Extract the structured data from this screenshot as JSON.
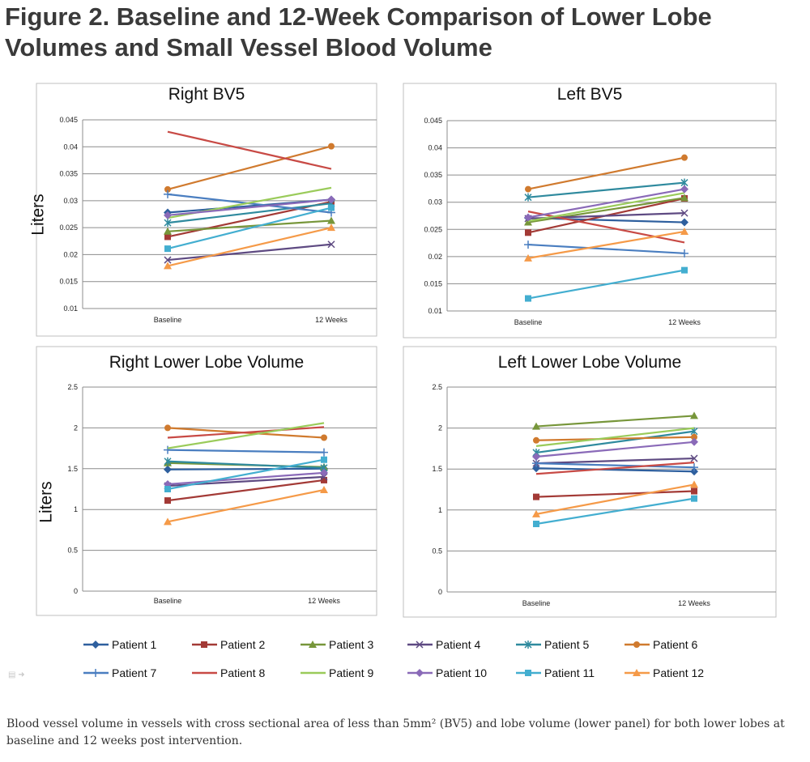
{
  "figure": {
    "title": "Figure 2. Baseline and 12-Week Comparison of Lower Lobe Volumes and Small Vessel Blood Volume",
    "caption": "Blood vessel volume in vessels with cross sectional area of less than 5mm² (BV5) and lobe volume (lower panel) for both lower lobes at baseline and 12 weeks post intervention."
  },
  "colors": {
    "Patient 1": "#2e5f9e",
    "Patient 2": "#a33a36",
    "Patient 3": "#77963a",
    "Patient 4": "#5e4a82",
    "Patient 5": "#2f8a9e",
    "Patient 6": "#d07a2e",
    "Patient 7": "#4a7ec0",
    "Patient 8": "#c84a45",
    "Patient 9": "#9acb5a",
    "Patient 10": "#8a6ab8",
    "Patient 11": "#43aed0",
    "Patient 12": "#f59a48"
  },
  "markers": {
    "Patient 1": "diamond",
    "Patient 2": "square",
    "Patient 3": "triangle",
    "Patient 4": "x",
    "Patient 5": "star",
    "Patient 6": "circle",
    "Patient 7": "plus",
    "Patient 8": "none",
    "Patient 9": "none",
    "Patient 10": "diamond",
    "Patient 11": "square",
    "Patient 12": "triangle"
  },
  "legend": [
    "Patient 1",
    "Patient 2",
    "Patient 3",
    "Patient 4",
    "Patient 5",
    "Patient 6",
    "Patient 7",
    "Patient 8",
    "Patient 9",
    "Patient 10",
    "Patient 11",
    "Patient 12"
  ],
  "chart_data": [
    {
      "type": "line",
      "title": "Right BV5",
      "ylabel": "Liters",
      "categories": [
        "Baseline",
        "12 Weeks"
      ],
      "ylim": [
        0.01,
        0.045
      ],
      "yticks": [
        "0.01",
        "0.015",
        "0.02",
        "0.025",
        "0.03",
        "0.035",
        "0.04",
        "0.045"
      ],
      "grid": true,
      "series": [
        {
          "name": "Patient 1",
          "values": [
            0.0278,
            0.0302
          ]
        },
        {
          "name": "Patient 2",
          "values": [
            0.0233,
            0.0298
          ]
        },
        {
          "name": "Patient 3",
          "values": [
            0.0243,
            0.0263
          ]
        },
        {
          "name": "Patient 4",
          "values": [
            0.019,
            0.0219
          ]
        },
        {
          "name": "Patient 5",
          "values": [
            0.0259,
            0.0295
          ]
        },
        {
          "name": "Patient 6",
          "values": [
            0.0321,
            0.0401
          ]
        },
        {
          "name": "Patient 7",
          "values": [
            0.0312,
            0.0278
          ]
        },
        {
          "name": "Patient 8",
          "values": [
            0.0428,
            0.0359
          ]
        },
        {
          "name": "Patient 9",
          "values": [
            0.0268,
            0.0324
          ]
        },
        {
          "name": "Patient 10",
          "values": [
            0.0273,
            0.0302
          ]
        },
        {
          "name": "Patient 11",
          "values": [
            0.0211,
            0.0287
          ]
        },
        {
          "name": "Patient 12",
          "values": [
            0.0179,
            0.025
          ]
        }
      ]
    },
    {
      "type": "line",
      "title": "Left BV5",
      "ylabel": "",
      "categories": [
        "Baseline",
        "12 Weeks"
      ],
      "ylim": [
        0.01,
        0.045
      ],
      "yticks": [
        "0.01",
        "0.015",
        "0.02",
        "0.025",
        "0.03",
        "0.035",
        "0.04",
        "0.045"
      ],
      "grid": true,
      "series": [
        {
          "name": "Patient 1",
          "values": [
            0.0271,
            0.0263
          ]
        },
        {
          "name": "Patient 2",
          "values": [
            0.0244,
            0.0307
          ]
        },
        {
          "name": "Patient 3",
          "values": [
            0.0263,
            0.0308
          ]
        },
        {
          "name": "Patient 4",
          "values": [
            0.027,
            0.028
          ]
        },
        {
          "name": "Patient 5",
          "values": [
            0.0309,
            0.0336
          ]
        },
        {
          "name": "Patient 6",
          "values": [
            0.0324,
            0.0382
          ]
        },
        {
          "name": "Patient 7",
          "values": [
            0.0222,
            0.0206
          ]
        },
        {
          "name": "Patient 8",
          "values": [
            0.0283,
            0.0226
          ]
        },
        {
          "name": "Patient 9",
          "values": [
            0.0265,
            0.0317
          ]
        },
        {
          "name": "Patient 10",
          "values": [
            0.0272,
            0.0324
          ]
        },
        {
          "name": "Patient 11",
          "values": [
            0.0123,
            0.0175
          ]
        },
        {
          "name": "Patient 12",
          "values": [
            0.0197,
            0.0246
          ]
        }
      ]
    },
    {
      "type": "line",
      "title": "Right Lower Lobe Volume",
      "ylabel": "Liters",
      "categories": [
        "Baseline",
        "12 Weeks"
      ],
      "ylim": [
        0,
        2.5
      ],
      "yticks": [
        "0",
        "0.5",
        "1",
        "1.5",
        "2",
        "2.5"
      ],
      "grid": true,
      "series": [
        {
          "name": "Patient 1",
          "values": [
            1.49,
            1.5
          ]
        },
        {
          "name": "Patient 2",
          "values": [
            1.11,
            1.36
          ]
        },
        {
          "name": "Patient 3",
          "values": [
            1.57,
            1.52
          ]
        },
        {
          "name": "Patient 4",
          "values": [
            1.29,
            1.4
          ]
        },
        {
          "name": "Patient 5",
          "values": [
            1.59,
            1.51
          ]
        },
        {
          "name": "Patient 6",
          "values": [
            2.0,
            1.88
          ]
        },
        {
          "name": "Patient 7",
          "values": [
            1.73,
            1.7
          ]
        },
        {
          "name": "Patient 8",
          "values": [
            1.88,
            2.01
          ]
        },
        {
          "name": "Patient 9",
          "values": [
            1.75,
            2.06
          ]
        },
        {
          "name": "Patient 10",
          "values": [
            1.31,
            1.45
          ]
        },
        {
          "name": "Patient 11",
          "values": [
            1.25,
            1.61
          ]
        },
        {
          "name": "Patient 12",
          "values": [
            0.85,
            1.24
          ]
        }
      ]
    },
    {
      "type": "line",
      "title": "Left Lower Lobe Volume",
      "ylabel": "",
      "categories": [
        "Baseline",
        "12 Weeks"
      ],
      "ylim": [
        0,
        2.5
      ],
      "yticks": [
        "0",
        "0.5",
        "1",
        "1.5",
        "2",
        "2.5"
      ],
      "grid": true,
      "series": [
        {
          "name": "Patient 1",
          "values": [
            1.51,
            1.47
          ]
        },
        {
          "name": "Patient 2",
          "values": [
            1.16,
            1.23
          ]
        },
        {
          "name": "Patient 3",
          "values": [
            2.02,
            2.15
          ]
        },
        {
          "name": "Patient 4",
          "values": [
            1.57,
            1.63
          ]
        },
        {
          "name": "Patient 5",
          "values": [
            1.7,
            1.96
          ]
        },
        {
          "name": "Patient 6",
          "values": [
            1.85,
            1.89
          ]
        },
        {
          "name": "Patient 7",
          "values": [
            1.57,
            1.52
          ]
        },
        {
          "name": "Patient 8",
          "values": [
            1.44,
            1.58
          ]
        },
        {
          "name": "Patient 9",
          "values": [
            1.78,
            2.0
          ]
        },
        {
          "name": "Patient 10",
          "values": [
            1.65,
            1.83
          ]
        },
        {
          "name": "Patient 11",
          "values": [
            0.83,
            1.14
          ]
        },
        {
          "name": "Patient 12",
          "values": [
            0.95,
            1.31
          ]
        }
      ]
    }
  ]
}
